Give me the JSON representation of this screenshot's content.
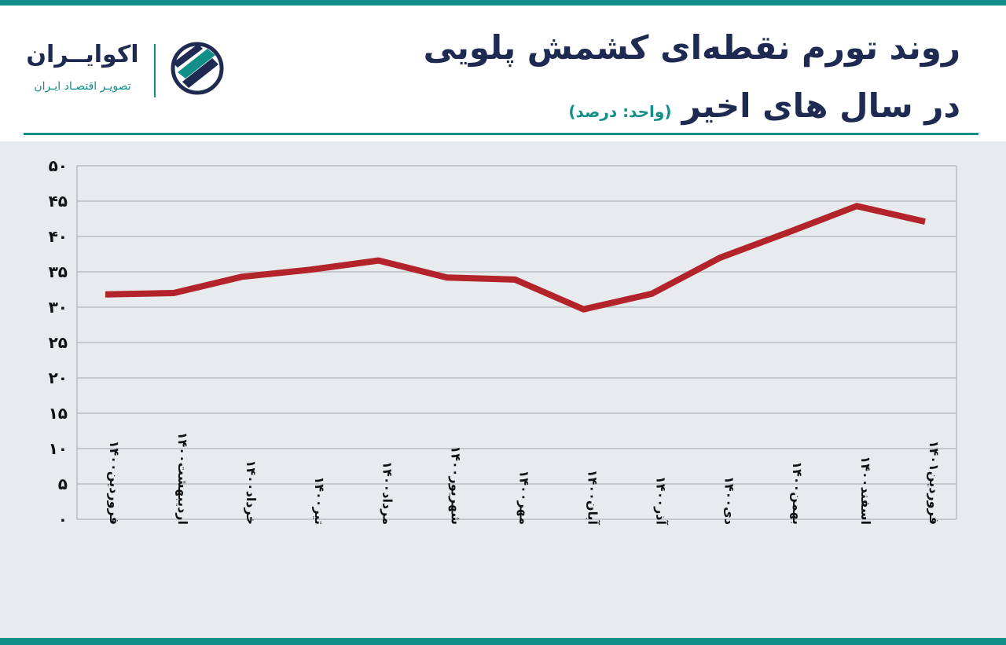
{
  "header": {
    "title_line1": "روند تورم نقطه‌ای کشمش پلویی",
    "title_line2": "در سال های اخیر",
    "unit": "(واحد: درصد)"
  },
  "logo": {
    "name": "اکوایــران",
    "tagline": "تصویـر اقتصـاد ایـران"
  },
  "colors": {
    "accent": "#0f8f88",
    "navy": "#1e2a52",
    "line": "#b3232a",
    "chart_bg": "#e8ebee",
    "grid": "#b7bbc0"
  },
  "chart_data": {
    "type": "line",
    "title": "روند تورم نقطه‌ای کشمش پلویی در سال های اخیر",
    "ylabel": "",
    "xlabel": "",
    "ylim": [
      0,
      50
    ],
    "yticks": [
      0,
      5,
      10,
      15,
      20,
      25,
      30,
      35,
      40,
      45,
      50
    ],
    "ytick_labels": [
      "۰",
      "۵",
      "۱۰",
      "۱۵",
      "۲۰",
      "۲۵",
      "۳۰",
      "۳۵",
      "۴۰",
      "۴۵",
      "۵۰"
    ],
    "grid": true,
    "categories": [
      "فروردین۱۴۰۰",
      "اردیبهشت۱۴۰۰",
      "خرداد۱۴۰۰",
      "تیر۱۴۰۰",
      "مرداد۱۴۰۰",
      "شهریور۱۴۰۰",
      "مهر۱۴۰۰",
      "آبان۱۴۰۰",
      "آذر۱۴۰۰",
      "دی۱۴۰۰",
      "بهمن۱۴۰۰",
      "اسفند۱۴۰۰",
      "فروردین۱۴۰۱"
    ],
    "series": [
      {
        "values": [
          31.8,
          32.0,
          34.3,
          35.3,
          36.6,
          34.2,
          33.9,
          29.7,
          31.9,
          37.0,
          40.6,
          44.3,
          42.1
        ]
      }
    ]
  }
}
